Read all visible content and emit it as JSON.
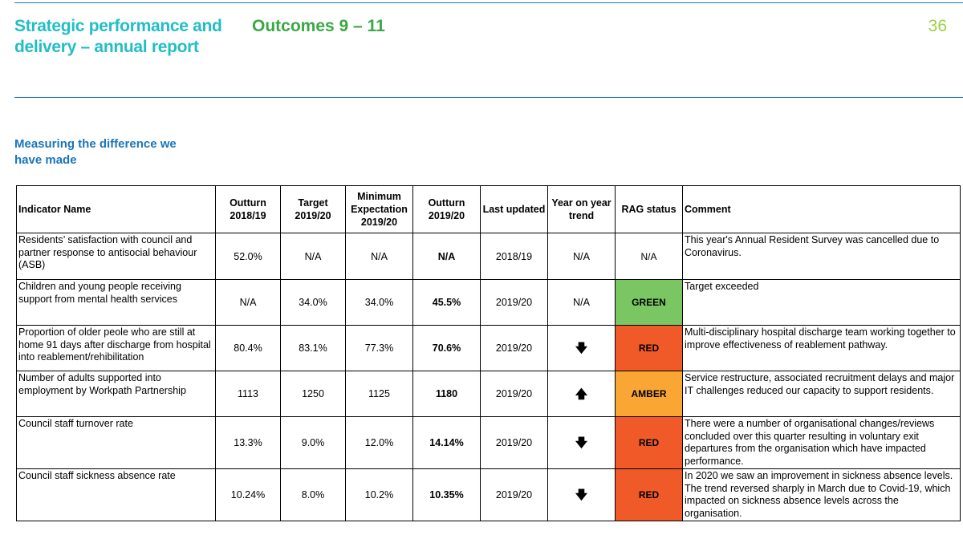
{
  "header": {
    "title": "Strategic performance and delivery – annual report",
    "outcomes": "Outcomes 9 – 11",
    "page_number": "36"
  },
  "section": {
    "title": "Measuring the difference we have made"
  },
  "table": {
    "headers": {
      "indicator": "Indicator Name",
      "outturn_1819": "Outturn 2018/19",
      "target": "Target 2019/20",
      "minimum": "Minimum Expectation 2019/20",
      "outturn_1920": "Outturn 2019/20",
      "last_updated": "Last updated",
      "trend": "Year on year trend",
      "rag": "RAG status",
      "comment": "Comment"
    },
    "rows": [
      {
        "indicator": "Residents’ satisfaction with council and partner response to antisocial behaviour (ASB)",
        "outturn_1819": "52.0%",
        "target": "N/A",
        "minimum": "N/A",
        "outturn_1920": "N/A",
        "last_updated": "2018/19",
        "trend": "N/A",
        "rag": "N/A",
        "comment": "This year's Annual Resident Survey was cancelled due to Coronavirus."
      },
      {
        "indicator": "Children and young people receiving support from mental health services",
        "outturn_1819": "N/A",
        "target": "34.0%",
        "minimum": "34.0%",
        "outturn_1920": "45.5%",
        "last_updated": "2019/20",
        "trend": "N/A",
        "rag": "GREEN",
        "comment": "Target exceeded"
      },
      {
        "indicator": "Proportion of older peole who are still at home 91 days after discharge from hospital into reablement/rehibilitation",
        "outturn_1819": "80.4%",
        "target": "83.1%",
        "minimum": "77.3%",
        "outturn_1920": "70.6%",
        "last_updated": "2019/20",
        "trend": "down-arrow-icon",
        "rag": "RED",
        "comment": "Multi-disciplinary hospital discharge team working together to improve effectiveness of reablement pathway."
      },
      {
        "indicator": "Number of adults supported into employment by Workpath Partnership",
        "outturn_1819": "1113",
        "target": "1250",
        "minimum": "1125",
        "outturn_1920": "1180",
        "last_updated": "2019/20",
        "trend": "up-arrow-icon",
        "rag": "AMBER",
        "comment": "Service restructure, associated recruitment delays and major IT challenges reduced our capacity to support residents."
      },
      {
        "indicator": "Council staff turnover rate",
        "outturn_1819": "13.3%",
        "target": "9.0%",
        "minimum": "12.0%",
        "outturn_1920": "14.14%",
        "last_updated": "2019/20",
        "trend": "down-arrow-icon",
        "rag": "RED",
        "comment": "There were a number of organisational changes/reviews concluded over this quarter resulting in voluntary exit departures from the organisation which have impacted performance."
      },
      {
        "indicator": "Council staff sickness absence rate",
        "outturn_1819": "10.24%",
        "target": "8.0%",
        "minimum": "10.2%",
        "outturn_1920": "10.35%",
        "last_updated": "2019/20",
        "trend": "down-arrow-icon",
        "rag": "RED",
        "comment": "In 2020 we saw an improvement in sickness absence levels. The trend reversed sharply in March due to Covid-19, which impacted on sickness absence levels across the organisation."
      }
    ]
  },
  "colors": {
    "title_teal": "#22bdc7",
    "outcomes_green": "#3aa844",
    "page_number_green": "#9ccf47",
    "rule_blue": "#1b75bc",
    "rag_green": "#7ac662",
    "rag_red": "#f05a28",
    "rag_amber": "#faa634"
  }
}
